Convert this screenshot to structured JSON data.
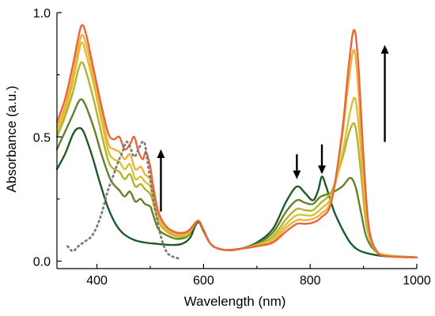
{
  "chart_data": {
    "type": "line",
    "xlabel": "Wavelength (nm)",
    "ylabel": "Absorbance (a.u.)",
    "xlim": [
      325,
      1000
    ],
    "ylim": [
      -0.03,
      1.0
    ],
    "x_ticks": [
      400,
      600,
      800,
      1000
    ],
    "x_tick_labels": [
      "400",
      "600",
      "800",
      "1000"
    ],
    "x_minor_ticks": [
      500,
      700,
      900
    ],
    "y_ticks": [
      0.0,
      0.5,
      1.0
    ],
    "y_tick_labels": [
      "0.0",
      "0.5",
      "1.0"
    ],
    "y_minor_ticks": [
      0.25,
      0.75
    ],
    "legend": "none",
    "grid": false,
    "series": [
      {
        "color": "#1f5a2a",
        "points": [
          [
            325,
            0.37
          ],
          [
            340,
            0.43
          ],
          [
            355,
            0.51
          ],
          [
            365,
            0.535
          ],
          [
            375,
            0.52
          ],
          [
            390,
            0.43
          ],
          [
            405,
            0.32
          ],
          [
            420,
            0.22
          ],
          [
            435,
            0.15
          ],
          [
            450,
            0.11
          ],
          [
            470,
            0.085
          ],
          [
            490,
            0.075
          ],
          [
            510,
            0.07
          ],
          [
            540,
            0.065
          ],
          [
            560,
            0.07
          ],
          [
            575,
            0.095
          ],
          [
            585,
            0.145
          ],
          [
            592,
            0.155
          ],
          [
            600,
            0.12
          ],
          [
            615,
            0.065
          ],
          [
            640,
            0.045
          ],
          [
            670,
            0.05
          ],
          [
            700,
            0.075
          ],
          [
            730,
            0.13
          ],
          [
            755,
            0.24
          ],
          [
            775,
            0.3
          ],
          [
            790,
            0.275
          ],
          [
            805,
            0.245
          ],
          [
            815,
            0.285
          ],
          [
            822,
            0.34
          ],
          [
            830,
            0.3
          ],
          [
            845,
            0.2
          ],
          [
            860,
            0.13
          ],
          [
            875,
            0.075
          ],
          [
            890,
            0.045
          ],
          [
            910,
            0.03
          ],
          [
            940,
            0.02
          ],
          [
            1000,
            0.015
          ]
        ]
      },
      {
        "color": "#66802a",
        "points": [
          [
            325,
            0.45
          ],
          [
            340,
            0.52
          ],
          [
            355,
            0.59
          ],
          [
            365,
            0.64
          ],
          [
            372,
            0.65
          ],
          [
            380,
            0.62
          ],
          [
            395,
            0.53
          ],
          [
            410,
            0.42
          ],
          [
            425,
            0.33
          ],
          [
            435,
            0.3
          ],
          [
            442,
            0.285
          ],
          [
            452,
            0.26
          ],
          [
            462,
            0.28
          ],
          [
            472,
            0.24
          ],
          [
            482,
            0.25
          ],
          [
            490,
            0.23
          ],
          [
            500,
            0.22
          ],
          [
            505,
            0.19
          ],
          [
            515,
            0.13
          ],
          [
            530,
            0.105
          ],
          [
            550,
            0.09
          ],
          [
            570,
            0.1
          ],
          [
            585,
            0.15
          ],
          [
            592,
            0.16
          ],
          [
            600,
            0.125
          ],
          [
            615,
            0.065
          ],
          [
            640,
            0.045
          ],
          [
            670,
            0.05
          ],
          [
            700,
            0.07
          ],
          [
            730,
            0.115
          ],
          [
            755,
            0.2
          ],
          [
            775,
            0.245
          ],
          [
            790,
            0.235
          ],
          [
            805,
            0.23
          ],
          [
            820,
            0.26
          ],
          [
            840,
            0.275
          ],
          [
            860,
            0.3
          ],
          [
            875,
            0.335
          ],
          [
            885,
            0.3
          ],
          [
            895,
            0.2
          ],
          [
            905,
            0.1
          ],
          [
            920,
            0.045
          ],
          [
            940,
            0.025
          ],
          [
            1000,
            0.015
          ]
        ]
      },
      {
        "color": "#b5b22c",
        "points": [
          [
            325,
            0.5
          ],
          [
            340,
            0.58
          ],
          [
            355,
            0.68
          ],
          [
            365,
            0.77
          ],
          [
            372,
            0.8
          ],
          [
            380,
            0.76
          ],
          [
            395,
            0.64
          ],
          [
            410,
            0.5
          ],
          [
            422,
            0.4
          ],
          [
            432,
            0.37
          ],
          [
            442,
            0.36
          ],
          [
            452,
            0.33
          ],
          [
            462,
            0.35
          ],
          [
            472,
            0.3
          ],
          [
            482,
            0.31
          ],
          [
            490,
            0.29
          ],
          [
            500,
            0.27
          ],
          [
            505,
            0.24
          ],
          [
            515,
            0.16
          ],
          [
            530,
            0.12
          ],
          [
            550,
            0.1
          ],
          [
            570,
            0.105
          ],
          [
            585,
            0.155
          ],
          [
            592,
            0.16
          ],
          [
            600,
            0.125
          ],
          [
            615,
            0.065
          ],
          [
            640,
            0.045
          ],
          [
            670,
            0.05
          ],
          [
            700,
            0.065
          ],
          [
            730,
            0.1
          ],
          [
            755,
            0.17
          ],
          [
            775,
            0.21
          ],
          [
            790,
            0.205
          ],
          [
            805,
            0.205
          ],
          [
            820,
            0.235
          ],
          [
            840,
            0.28
          ],
          [
            860,
            0.41
          ],
          [
            875,
            0.53
          ],
          [
            885,
            0.54
          ],
          [
            895,
            0.36
          ],
          [
            905,
            0.15
          ],
          [
            920,
            0.05
          ],
          [
            940,
            0.025
          ],
          [
            1000,
            0.015
          ]
        ]
      },
      {
        "color": "#d8c236",
        "points": [
          [
            325,
            0.52
          ],
          [
            340,
            0.6
          ],
          [
            355,
            0.72
          ],
          [
            365,
            0.83
          ],
          [
            372,
            0.88
          ],
          [
            380,
            0.83
          ],
          [
            395,
            0.7
          ],
          [
            410,
            0.55
          ],
          [
            422,
            0.44
          ],
          [
            432,
            0.41
          ],
          [
            442,
            0.4
          ],
          [
            452,
            0.37
          ],
          [
            462,
            0.39
          ],
          [
            472,
            0.33
          ],
          [
            482,
            0.34
          ],
          [
            490,
            0.32
          ],
          [
            500,
            0.3
          ],
          [
            505,
            0.26
          ],
          [
            515,
            0.17
          ],
          [
            530,
            0.125
          ],
          [
            550,
            0.105
          ],
          [
            570,
            0.11
          ],
          [
            585,
            0.155
          ],
          [
            592,
            0.16
          ],
          [
            600,
            0.125
          ],
          [
            615,
            0.065
          ],
          [
            640,
            0.045
          ],
          [
            670,
            0.05
          ],
          [
            700,
            0.065
          ],
          [
            730,
            0.09
          ],
          [
            755,
            0.15
          ],
          [
            775,
            0.185
          ],
          [
            790,
            0.185
          ],
          [
            805,
            0.185
          ],
          [
            820,
            0.21
          ],
          [
            840,
            0.26
          ],
          [
            860,
            0.43
          ],
          [
            875,
            0.6
          ],
          [
            885,
            0.65
          ],
          [
            895,
            0.45
          ],
          [
            905,
            0.18
          ],
          [
            920,
            0.055
          ],
          [
            940,
            0.025
          ],
          [
            1000,
            0.015
          ]
        ]
      },
      {
        "color": "#f0b03c",
        "points": [
          [
            325,
            0.54
          ],
          [
            340,
            0.62
          ],
          [
            355,
            0.75
          ],
          [
            365,
            0.86
          ],
          [
            372,
            0.91
          ],
          [
            380,
            0.87
          ],
          [
            395,
            0.73
          ],
          [
            410,
            0.58
          ],
          [
            422,
            0.47
          ],
          [
            432,
            0.45
          ],
          [
            442,
            0.44
          ],
          [
            452,
            0.41
          ],
          [
            462,
            0.43
          ],
          [
            472,
            0.37
          ],
          [
            482,
            0.38
          ],
          [
            490,
            0.35
          ],
          [
            500,
            0.33
          ],
          [
            505,
            0.28
          ],
          [
            515,
            0.18
          ],
          [
            530,
            0.13
          ],
          [
            550,
            0.11
          ],
          [
            570,
            0.115
          ],
          [
            585,
            0.155
          ],
          [
            592,
            0.16
          ],
          [
            600,
            0.125
          ],
          [
            615,
            0.065
          ],
          [
            640,
            0.045
          ],
          [
            670,
            0.05
          ],
          [
            700,
            0.06
          ],
          [
            730,
            0.08
          ],
          [
            755,
            0.135
          ],
          [
            775,
            0.165
          ],
          [
            790,
            0.165
          ],
          [
            805,
            0.17
          ],
          [
            820,
            0.19
          ],
          [
            840,
            0.25
          ],
          [
            860,
            0.5
          ],
          [
            872,
            0.72
          ],
          [
            882,
            0.85
          ],
          [
            890,
            0.7
          ],
          [
            900,
            0.35
          ],
          [
            910,
            0.12
          ],
          [
            925,
            0.04
          ],
          [
            945,
            0.02
          ],
          [
            1000,
            0.015
          ]
        ]
      },
      {
        "color": "#e8673a",
        "points": [
          [
            325,
            0.56
          ],
          [
            340,
            0.65
          ],
          [
            355,
            0.79
          ],
          [
            365,
            0.9
          ],
          [
            372,
            0.95
          ],
          [
            380,
            0.91
          ],
          [
            395,
            0.76
          ],
          [
            410,
            0.61
          ],
          [
            422,
            0.51
          ],
          [
            432,
            0.49
          ],
          [
            442,
            0.5
          ],
          [
            452,
            0.45
          ],
          [
            462,
            0.47
          ],
          [
            470,
            0.5
          ],
          [
            478,
            0.44
          ],
          [
            486,
            0.41
          ],
          [
            492,
            0.44
          ],
          [
            500,
            0.38
          ],
          [
            505,
            0.31
          ],
          [
            515,
            0.2
          ],
          [
            530,
            0.14
          ],
          [
            550,
            0.115
          ],
          [
            570,
            0.12
          ],
          [
            585,
            0.155
          ],
          [
            592,
            0.16
          ],
          [
            600,
            0.125
          ],
          [
            615,
            0.065
          ],
          [
            640,
            0.045
          ],
          [
            670,
            0.05
          ],
          [
            700,
            0.06
          ],
          [
            730,
            0.075
          ],
          [
            755,
            0.12
          ],
          [
            775,
            0.15
          ],
          [
            790,
            0.15
          ],
          [
            805,
            0.155
          ],
          [
            820,
            0.175
          ],
          [
            840,
            0.24
          ],
          [
            860,
            0.52
          ],
          [
            872,
            0.78
          ],
          [
            882,
            0.93
          ],
          [
            890,
            0.8
          ],
          [
            900,
            0.42
          ],
          [
            910,
            0.14
          ],
          [
            925,
            0.04
          ],
          [
            945,
            0.02
          ],
          [
            1000,
            0.015
          ]
        ]
      },
      {
        "color": "#7a7a7a",
        "dashed": true,
        "points": [
          [
            345,
            0.06
          ],
          [
            355,
            0.04
          ],
          [
            365,
            0.06
          ],
          [
            378,
            0.08
          ],
          [
            390,
            0.1
          ],
          [
            400,
            0.14
          ],
          [
            410,
            0.2
          ],
          [
            420,
            0.28
          ],
          [
            430,
            0.34
          ],
          [
            440,
            0.4
          ],
          [
            448,
            0.44
          ],
          [
            455,
            0.48
          ],
          [
            462,
            0.46
          ],
          [
            470,
            0.42
          ],
          [
            478,
            0.45
          ],
          [
            485,
            0.48
          ],
          [
            490,
            0.47
          ],
          [
            495,
            0.4
          ],
          [
            502,
            0.3
          ],
          [
            510,
            0.2
          ],
          [
            520,
            0.1
          ],
          [
            530,
            0.04
          ],
          [
            540,
            0.02
          ],
          [
            555,
            0.01
          ]
        ]
      }
    ],
    "annotations": [
      {
        "type": "arrow",
        "direction": "up",
        "x": 520,
        "y_from": 0.2,
        "y_to": 0.45
      },
      {
        "type": "arrow",
        "direction": "down",
        "x": 775,
        "y_from": 0.43,
        "y_to": 0.33
      },
      {
        "type": "arrow",
        "direction": "down",
        "x": 822,
        "y_from": 0.47,
        "y_to": 0.35
      },
      {
        "type": "arrow",
        "direction": "up",
        "x": 940,
        "y_from": 0.48,
        "y_to": 0.87
      }
    ]
  }
}
